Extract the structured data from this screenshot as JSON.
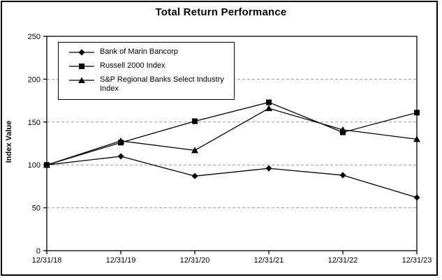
{
  "chart_data": {
    "type": "line",
    "title": "Total Return Performance",
    "xlabel": "",
    "ylabel": "Index Value",
    "categories": [
      "12/31/18",
      "12/31/19",
      "12/31/20",
      "12/31/21",
      "12/31/22",
      "12/31/23"
    ],
    "series": [
      {
        "name": "Bank of Marin Bancorp",
        "marker": "diamond",
        "values": [
          100,
          110,
          87,
          96,
          88,
          62
        ]
      },
      {
        "name": "Russell 2000 Index",
        "marker": "square",
        "values": [
          100,
          126,
          151,
          173,
          138,
          161
        ]
      },
      {
        "name": "S&P Regional Banks Select Industry Index",
        "marker": "triangle",
        "values": [
          100,
          128,
          117,
          166,
          141,
          130
        ]
      }
    ],
    "ylim": [
      0,
      250
    ],
    "ytick_step": 50,
    "yticks": [
      "0",
      "50",
      "100",
      "150",
      "200",
      "250"
    ],
    "grid": true,
    "legend_position": "top-left-inside",
    "series_color": "#000000",
    "grid_color": "#989898",
    "background": "#ffffff"
  }
}
